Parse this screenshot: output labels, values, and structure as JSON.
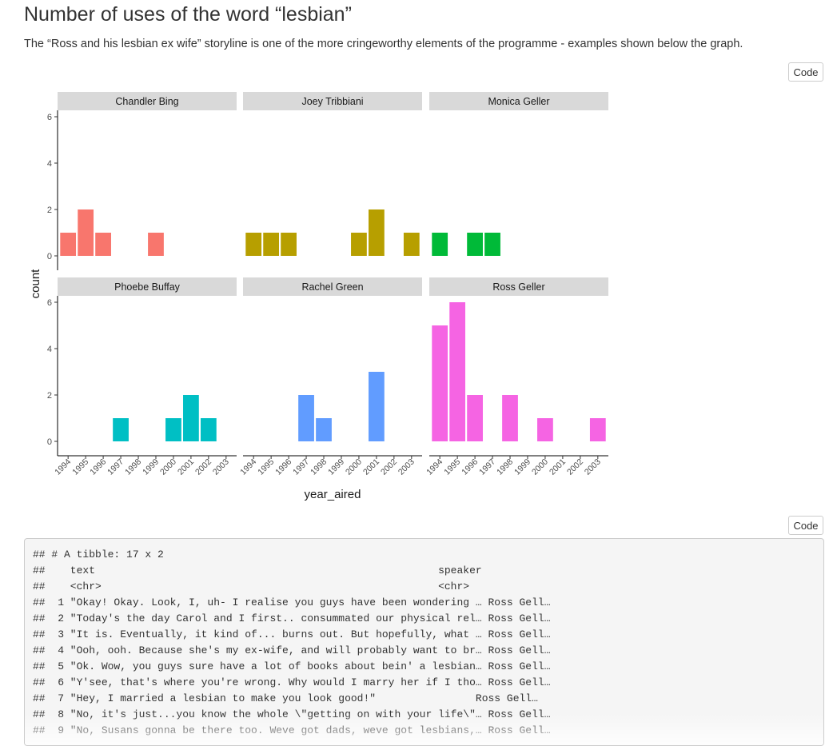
{
  "page": {
    "title": "Number of uses of the word “lesbian”",
    "description": "The “Ross and his lesbian ex wife” storyline is one of the more cringeworthy elements of the programme - examples shown below the graph.",
    "code_button_label": "Code"
  },
  "chart_data": {
    "type": "bar",
    "title": "",
    "xlabel": "year_aired",
    "ylabel": "count",
    "ylim": [
      0,
      6
    ],
    "yticks": [
      0,
      2,
      4,
      6
    ],
    "categories": [
      "1994",
      "1995",
      "1996",
      "1997",
      "1998",
      "1999",
      "2000",
      "2001",
      "2002",
      "2003"
    ],
    "grid": false,
    "facet_layout": "2 rows x 3 columns",
    "series": [
      {
        "name": "Chandler Bing",
        "color": "#F8766D",
        "values": [
          1,
          2,
          1,
          0,
          0,
          1,
          0,
          0,
          0,
          0
        ]
      },
      {
        "name": "Joey Tribbiani",
        "color": "#B79F00",
        "values": [
          1,
          1,
          1,
          0,
          0,
          0,
          1,
          2,
          0,
          1
        ]
      },
      {
        "name": "Monica Geller",
        "color": "#00BA38",
        "values": [
          1,
          0,
          1,
          1,
          0,
          0,
          0,
          0,
          0,
          0
        ]
      },
      {
        "name": "Phoebe Buffay",
        "color": "#00BFC4",
        "values": [
          0,
          0,
          0,
          1,
          0,
          0,
          1,
          2,
          1,
          0
        ]
      },
      {
        "name": "Rachel Green",
        "color": "#619CFF",
        "values": [
          0,
          0,
          0,
          2,
          1,
          0,
          0,
          3,
          0,
          0
        ]
      },
      {
        "name": "Ross Geller",
        "color": "#F564E3",
        "values": [
          5,
          6,
          2,
          0,
          2,
          0,
          1,
          0,
          0,
          1
        ]
      }
    ]
  },
  "output": {
    "lines": [
      "## # A tibble: 17 x 2",
      "##    text                                                       speaker",
      "##    <chr>                                                      <chr>",
      "##  1 \"Okay! Okay. Look, I, uh- I realise you guys have been wondering … Ross Gell…",
      "##  2 \"Today's the day Carol and I first.. consummated our physical rel… Ross Gell…",
      "##  3 \"It is. Eventually, it kind of... burns out. But hopefully, what … Ross Gell…",
      "##  4 \"Ooh, ooh. Because she's my ex-wife, and will probably want to br… Ross Gell…",
      "##  5 \"Ok. Wow, you guys sure have a lot of books about bein' a lesbian… Ross Gell…",
      "##  6 \"Y'see, that's where you're wrong. Why would I marry her if I tho… Ross Gell…",
      "##  7 \"Hey, I married a lesbian to make you look good!\"                Ross Gell…",
      "##  8 \"No, it's just...you know the whole \\\"getting on with your life\\\"… Ross Gell…",
      "##  9 \"No, Susans gonna be there too. Weve got dads, weve got lesbians,… Ross Gell…"
    ]
  }
}
